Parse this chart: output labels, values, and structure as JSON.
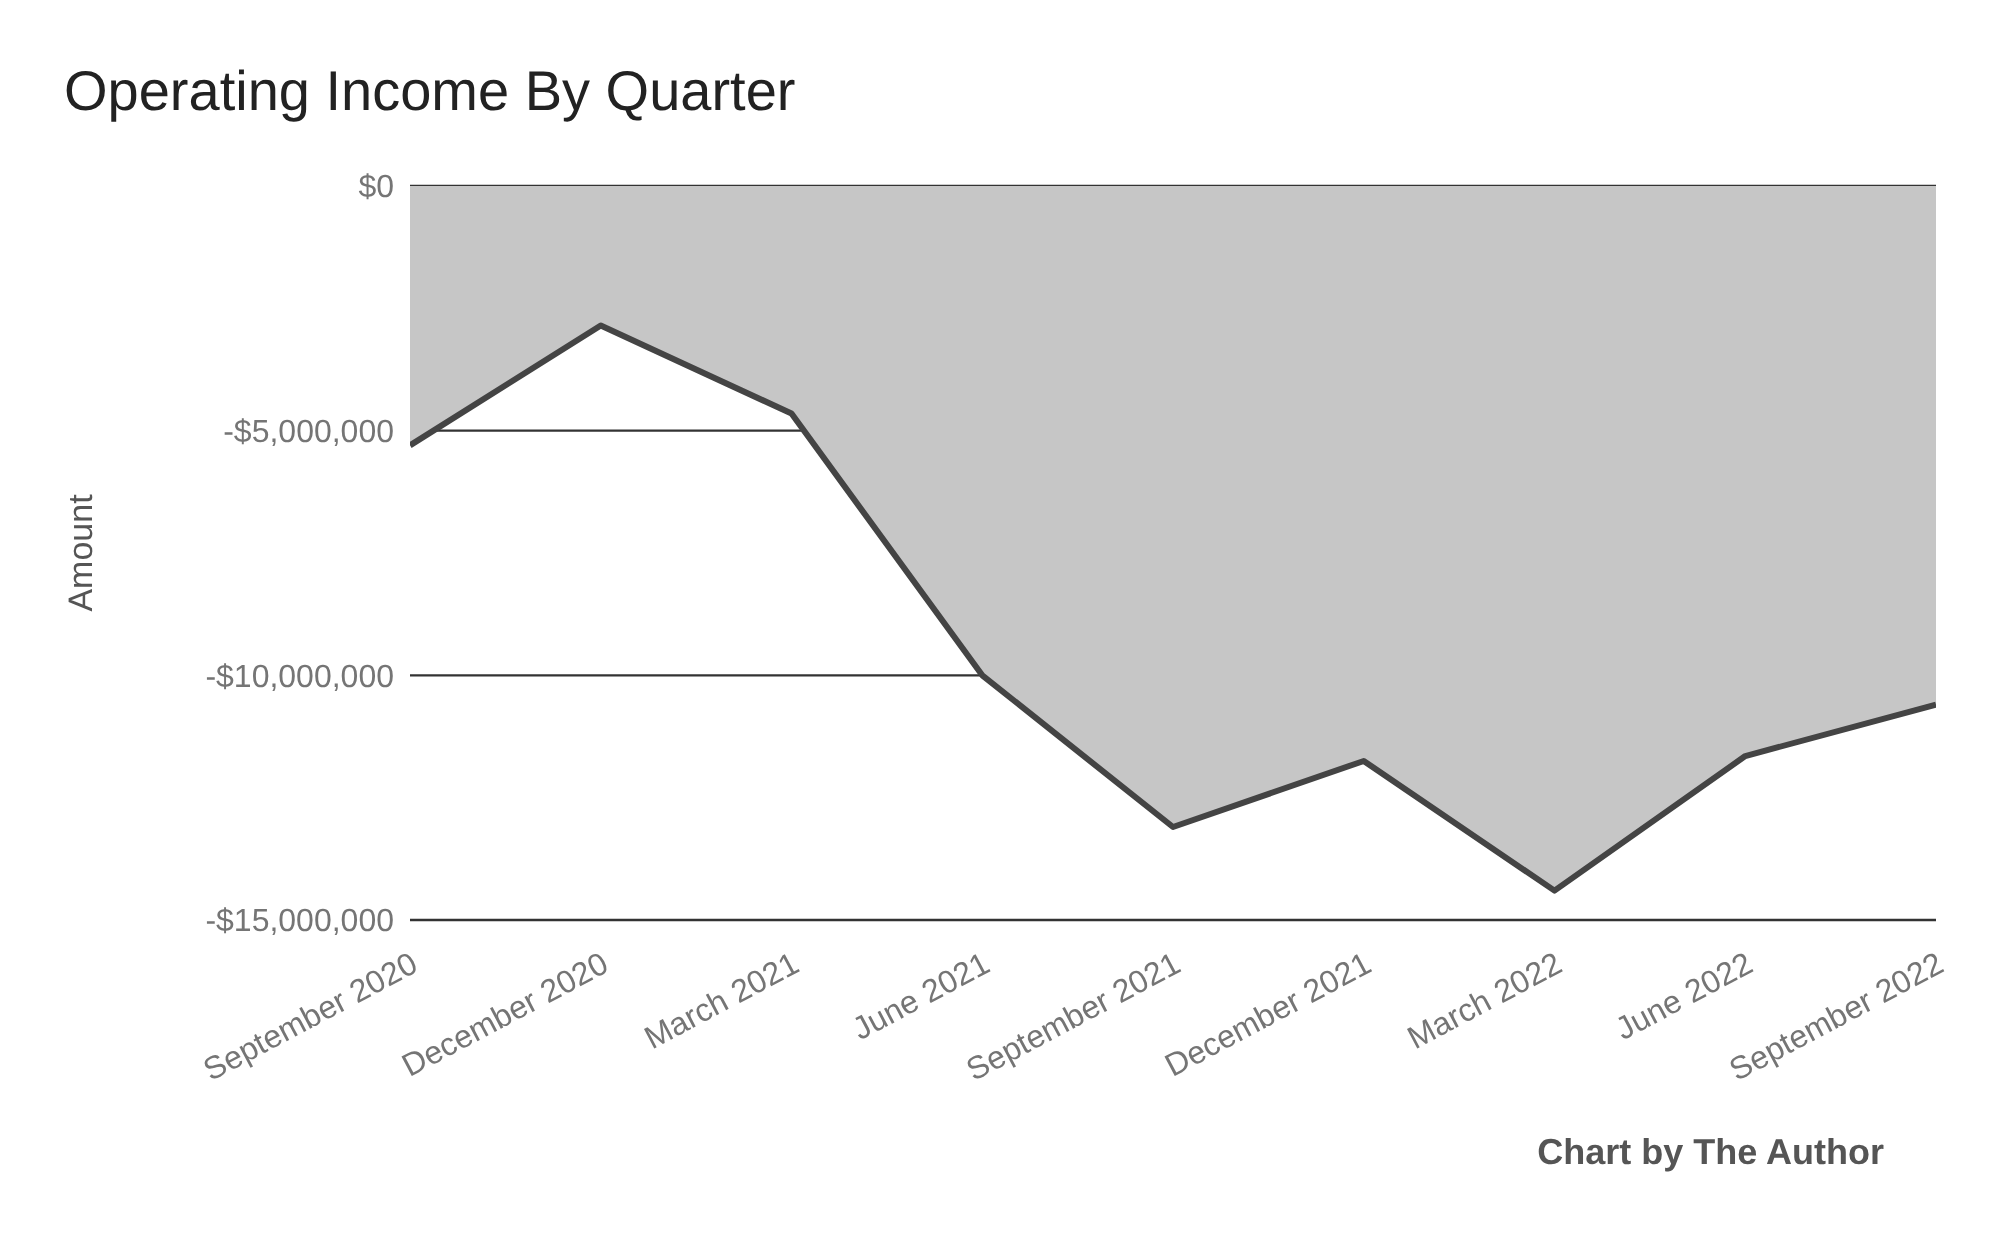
{
  "chart_data": {
    "type": "area",
    "title": "Operating Income By Quarter",
    "ylabel": "Amount",
    "categories": [
      "September 2020",
      "December 2020",
      "March 2021",
      "June 2021",
      "September 2021",
      "December 2021",
      "March 2022",
      "June 2022",
      "September 2022"
    ],
    "series": [
      {
        "color": "#444444",
        "values": [
          -5300000,
          -2850000,
          -4650000,
          -10000000,
          -13100000,
          -11750000,
          -14400000,
          -11650000,
          -10600000
        ]
      }
    ],
    "ylim": [
      -15000000,
      0
    ],
    "yticks": [
      {
        "value": -15000000,
        "label": "-$15,000,000"
      },
      {
        "value": -10000000,
        "label": "-$10,000,000"
      },
      {
        "value": -5000000,
        "label": "-$5,000,000"
      },
      {
        "value": 0,
        "label": "$0"
      }
    ],
    "grid": "y",
    "legend": false,
    "marker": "none",
    "line_style": "solid",
    "annotations": [
      "Chart by The Author"
    ]
  }
}
